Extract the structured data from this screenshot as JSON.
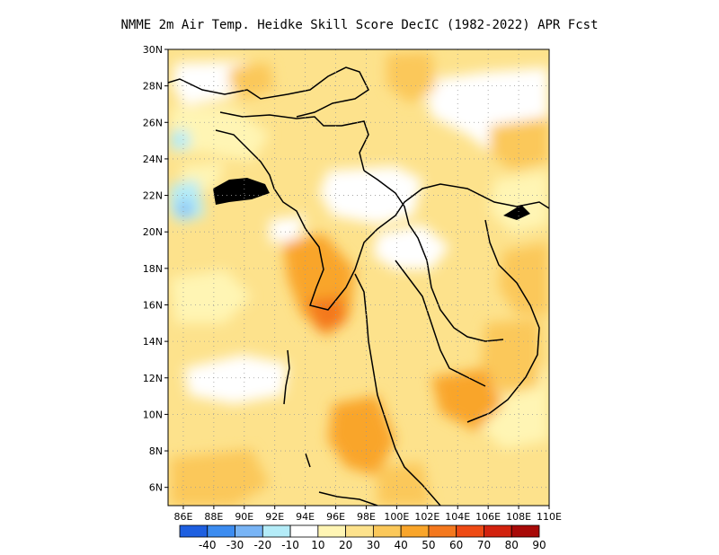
{
  "title": "NMME  2m Air Temp. Heidke Skill Score DecIC (1982-2022) APR Fcst",
  "map": {
    "lon_range": [
      85,
      110
    ],
    "lat_range": [
      5,
      30
    ],
    "lon_ticks": [
      "86E",
      "88E",
      "90E",
      "92E",
      "94E",
      "96E",
      "98E",
      "100E",
      "102E",
      "104E",
      "106E",
      "108E",
      "110E"
    ],
    "lat_ticks": [
      "6N",
      "8N",
      "10N",
      "12N",
      "14N",
      "16N",
      "18N",
      "20N",
      "22N",
      "24N",
      "26N",
      "28N",
      "30N"
    ]
  },
  "colorbar": {
    "labels": [
      "-40",
      "-30",
      "-20",
      "-10",
      "10",
      "20",
      "30",
      "40",
      "50",
      "60",
      "70",
      "80",
      "90"
    ],
    "colors": [
      "#1e5fe0",
      "#3c8cf0",
      "#78b4f5",
      "#b4ecf8",
      "#ffffff",
      "#fff5b4",
      "#fde28c",
      "#fbc85a",
      "#f9a52a",
      "#f4781e",
      "#ee4a14",
      "#d2220e",
      "#a80a08"
    ]
  }
}
